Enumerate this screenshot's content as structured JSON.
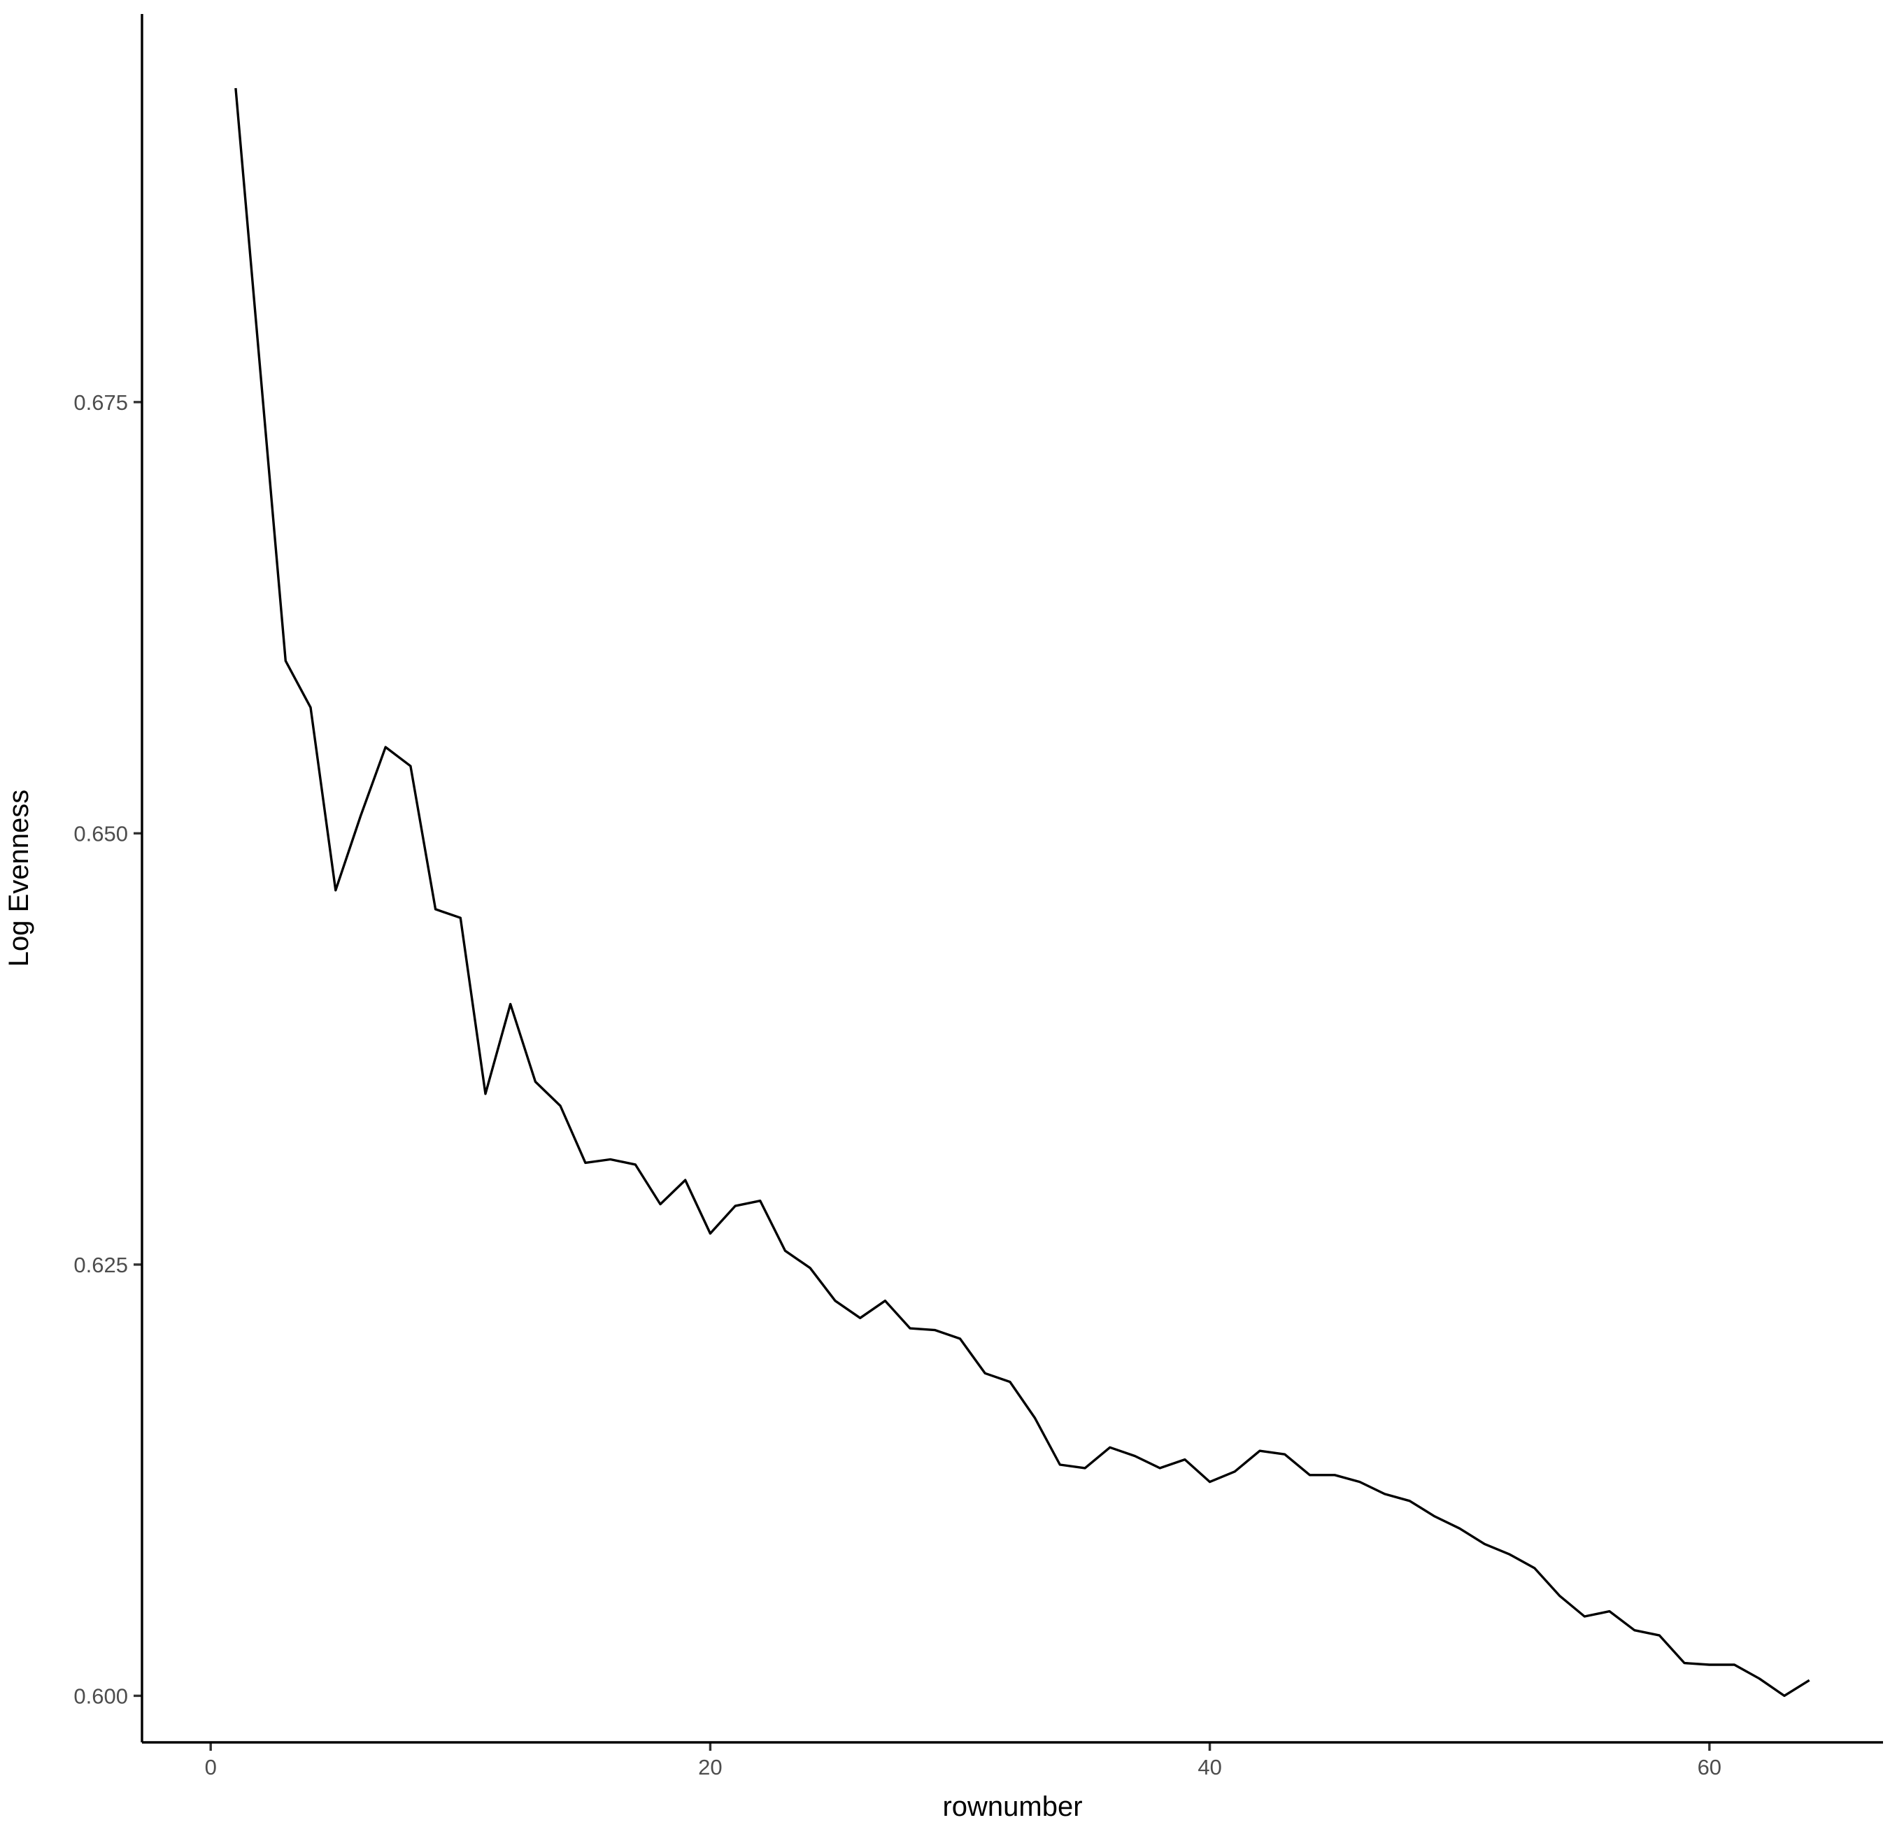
{
  "chart_data": {
    "type": "line",
    "title": "",
    "xlabel": "rownumber",
    "ylabel": "Log Evenness",
    "xlim": [
      -2.75,
      66.95
    ],
    "ylim": [
      0.5973,
      0.6975
    ],
    "xticks": [
      0,
      20,
      40,
      60
    ],
    "xtick_labels": [
      "0",
      "20",
      "40",
      "60"
    ],
    "yticks": [
      0.6,
      0.625,
      0.65,
      0.675
    ],
    "ytick_labels": [
      "0.600",
      "0.625",
      "0.650",
      "0.675"
    ],
    "grid": false,
    "legend": "none",
    "series": [
      {
        "name": "Log Evenness",
        "color": "#000000",
        "x": [
          1,
          2,
          3,
          4,
          5,
          6,
          7,
          8,
          9,
          10,
          11,
          12,
          13,
          14,
          15,
          16,
          17,
          18,
          19,
          20,
          21,
          22,
          23,
          24,
          25,
          26,
          27,
          28,
          29,
          30,
          31,
          32,
          33,
          34,
          35,
          36,
          37,
          38,
          39,
          40,
          41,
          42,
          43,
          44,
          45,
          46,
          47,
          48,
          49,
          50,
          51,
          52,
          53,
          54,
          55,
          56,
          57,
          58,
          59,
          60,
          61,
          62,
          63,
          64
        ],
        "y": [
          0.6932,
          0.6766,
          0.66,
          0.6573,
          0.6467,
          0.651,
          0.655,
          0.6539,
          0.6456,
          0.6451,
          0.6349,
          0.6401,
          0.6356,
          0.6342,
          0.6309,
          0.6311,
          0.6308,
          0.6285,
          0.6299,
          0.6268,
          0.6284,
          0.6287,
          0.6258,
          0.6248,
          0.6229,
          0.6219,
          0.6229,
          0.6213,
          0.6212,
          0.6207,
          0.6187,
          0.6182,
          0.6161,
          0.6134,
          0.6132,
          0.6144,
          0.6139,
          0.6132,
          0.6137,
          0.6124,
          0.613,
          0.6142,
          0.614,
          0.6128,
          0.6128,
          0.6124,
          0.6117,
          0.6113,
          0.6104,
          0.6097,
          0.6088,
          0.6082,
          0.6074,
          0.6058,
          0.6046,
          0.6049,
          0.6038,
          0.6035,
          0.6019,
          0.6018,
          0.6018,
          0.601,
          0.6,
          0.6009
        ]
      }
    ]
  }
}
